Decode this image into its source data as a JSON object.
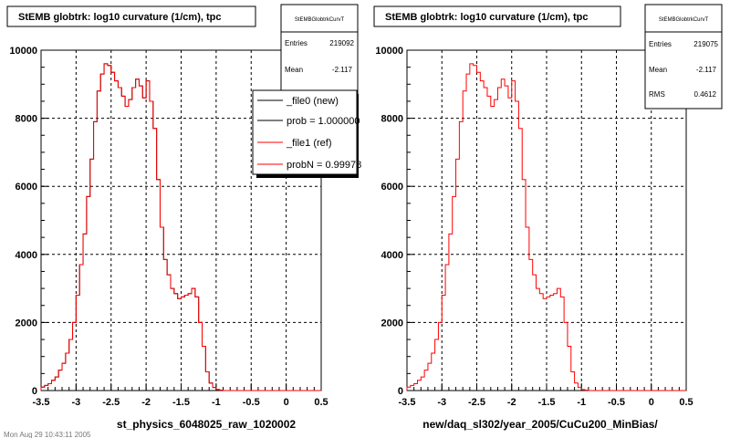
{
  "charts": [
    {
      "title": "StEMB globtrk: log10 curvature (1/cm), tpc",
      "xlabel": "st_physics_6048025_raw_1020002",
      "stats": {
        "name": "StEMBGlobtrkCurvT",
        "rows": [
          {
            "label": "Entries",
            "value": "219092"
          },
          {
            "label": "Mean",
            "value": "-2.117"
          }
        ]
      },
      "legend": [
        {
          "label": "_file0 (new)",
          "color": "#000000"
        },
        {
          "label": "prob = 1.000000",
          "color": "#000000"
        },
        {
          "label": "_file1 (ref)",
          "color": "#ff0000"
        },
        {
          "label": "probN = 0.99978",
          "color": "#ff0000"
        }
      ]
    },
    {
      "title": "StEMB globtrk: log10 curvature (1/cm), tpc",
      "xlabel": "new/daq_sl302/year_2005/CuCu200_MinBias/",
      "stats": {
        "name": "StEMBGlobtrkCurvT",
        "rows": [
          {
            "label": "Entries",
            "value": "219075"
          },
          {
            "label": "Mean",
            "value": "-2.117"
          },
          {
            "label": "RMS",
            "value": "0.4612"
          }
        ]
      }
    }
  ],
  "footer_text": "Mon Aug 29 10:43:11 2005",
  "chart_data": [
    {
      "type": "line",
      "title": "StEMB globtrk: log10 curvature (1/cm), tpc",
      "xlabel": "st_physics_6048025_raw_1020002",
      "ylabel": "",
      "xlim": [
        -3.5,
        0.5
      ],
      "ylim": [
        0,
        10000
      ],
      "xticks": [
        -3.5,
        -3,
        -2.5,
        -2,
        -1.5,
        -1,
        -0.5,
        0,
        0.5
      ],
      "yticks": [
        0,
        2000,
        4000,
        6000,
        8000,
        10000
      ],
      "grid": true,
      "legend_position": "top-right",
      "bin_edges_start": -3.5,
      "bin_width": 0.05,
      "series": [
        {
          "name": "_file0 (new)",
          "color": "#000000",
          "values": [
            100,
            150,
            200,
            300,
            400,
            600,
            800,
            1100,
            1500,
            2000,
            2800,
            3700,
            4600,
            5700,
            6800,
            7900,
            8800,
            9300,
            9600,
            9550,
            9350,
            9100,
            8900,
            8650,
            8350,
            8550,
            8900,
            9150,
            8950,
            8600,
            9100,
            8500,
            7700,
            6200,
            4800,
            3850,
            3400,
            3000,
            2850,
            2700,
            2750,
            2800,
            2850,
            3000,
            2750,
            2000,
            1300,
            550,
            220,
            90,
            30,
            10,
            0,
            0,
            0,
            0,
            0,
            0,
            0,
            0,
            0,
            0,
            0,
            0,
            0,
            0,
            0,
            0,
            0,
            0,
            0,
            0,
            0,
            0,
            0,
            0,
            0,
            0,
            0,
            0
          ]
        },
        {
          "name": "_file1 (ref)",
          "color": "#ff0000",
          "values": [
            100,
            150,
            200,
            300,
            400,
            600,
            800,
            1100,
            1500,
            2000,
            2800,
            3700,
            4600,
            5700,
            6800,
            7900,
            8800,
            9300,
            9600,
            9550,
            9350,
            9100,
            8900,
            8650,
            8350,
            8550,
            8900,
            9150,
            8950,
            8600,
            9100,
            8500,
            7700,
            6200,
            4800,
            3850,
            3400,
            3000,
            2850,
            2700,
            2750,
            2800,
            2850,
            3000,
            2750,
            2000,
            1300,
            550,
            220,
            90,
            30,
            10,
            0,
            0,
            0,
            0,
            0,
            0,
            0,
            0,
            0,
            0,
            0,
            0,
            0,
            0,
            0,
            0,
            0,
            0,
            0,
            0,
            0,
            0,
            0,
            0,
            0,
            0,
            0,
            0
          ]
        }
      ]
    },
    {
      "type": "line",
      "title": "StEMB globtrk: log10 curvature (1/cm), tpc",
      "xlabel": "new/daq_sl302/year_2005/CuCu200_MinBias/",
      "ylabel": "",
      "xlim": [
        -3.5,
        0.5
      ],
      "ylim": [
        0,
        10000
      ],
      "xticks": [
        -3.5,
        -3,
        -2.5,
        -2,
        -1.5,
        -1,
        -0.5,
        0,
        0.5
      ],
      "yticks": [
        0,
        2000,
        4000,
        6000,
        8000,
        10000
      ],
      "grid": true,
      "bin_edges_start": -3.5,
      "bin_width": 0.05,
      "series": [
        {
          "color": "#ff0000",
          "values": [
            100,
            150,
            200,
            300,
            400,
            600,
            800,
            1100,
            1500,
            2000,
            2800,
            3700,
            4600,
            5700,
            6800,
            7900,
            8800,
            9300,
            9600,
            9550,
            9350,
            9100,
            8900,
            8650,
            8350,
            8550,
            8900,
            9150,
            8950,
            8600,
            9100,
            8500,
            7700,
            6200,
            4800,
            3850,
            3400,
            3000,
            2850,
            2700,
            2750,
            2800,
            2850,
            3000,
            2750,
            2000,
            1300,
            550,
            220,
            90,
            30,
            10,
            0,
            0,
            0,
            0,
            0,
            0,
            0,
            0,
            0,
            0,
            0,
            0,
            0,
            0,
            0,
            0,
            0,
            0,
            0,
            0,
            0,
            0,
            0,
            0,
            0,
            0,
            0,
            0
          ]
        }
      ]
    }
  ]
}
